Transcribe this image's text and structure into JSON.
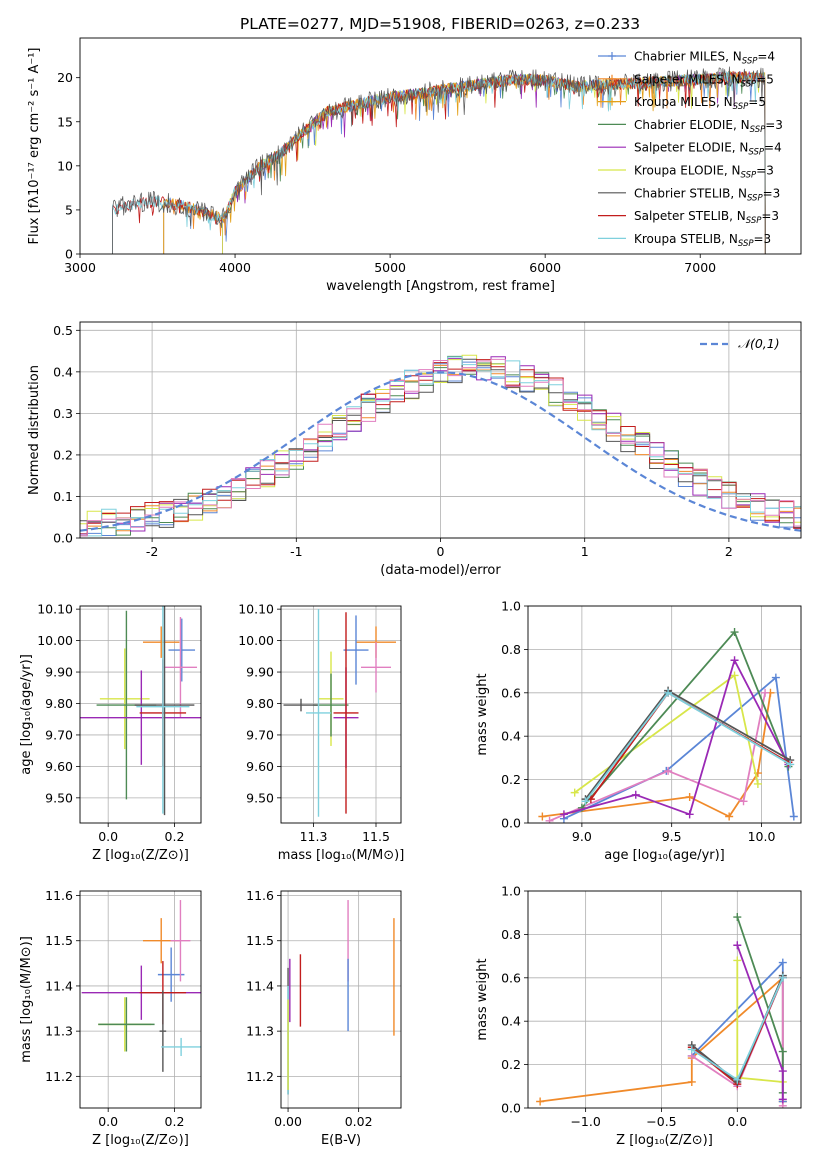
{
  "figure": {
    "title": "PLATE=0277, MJD=51908, FIBERID=0263, z=0.233",
    "palette": [
      "#5b86d6",
      "#f08a2a",
      "#e3a018",
      "#4d8a55",
      "#9a29b5",
      "#d8e64a",
      "#555555",
      "#c21d1d",
      "#7fd0dd",
      "#e17fc0"
    ]
  },
  "chart_data": [
    {
      "id": "spectrum",
      "type": "line",
      "xlabel": "wavelength [Angstrom, rest frame]",
      "ylabel": "Flux [fλ10⁻¹⁷ erg cm⁻² s⁻¹ A⁻¹]",
      "xlim": [
        3000,
        7650
      ],
      "ylim": [
        0,
        24.5
      ],
      "xticks": [
        3000,
        4000,
        5000,
        6000,
        7000
      ],
      "yticks": [
        0,
        5,
        10,
        15,
        20
      ],
      "grid": false,
      "legend_position": "top-right",
      "spectrum_range": [
        3210,
        7420
      ],
      "spectrum_knots": [
        [
          3210,
          5.0
        ],
        [
          3300,
          5.5
        ],
        [
          3500,
          6.0
        ],
        [
          3700,
          5.3
        ],
        [
          3930,
          4.0
        ],
        [
          4000,
          7.0
        ],
        [
          4150,
          9.8
        ],
        [
          4300,
          11.5
        ],
        [
          4450,
          14.0
        ],
        [
          4600,
          16.2
        ],
        [
          4800,
          17.0
        ],
        [
          5000,
          17.8
        ],
        [
          5200,
          18.2
        ],
        [
          5400,
          18.8
        ],
        [
          5600,
          19.3
        ],
        [
          5800,
          19.8
        ],
        [
          6000,
          19.7
        ],
        [
          6200,
          19.0
        ],
        [
          6400,
          19.2
        ],
        [
          6600,
          19.4
        ],
        [
          6800,
          19.6
        ],
        [
          7000,
          19.8
        ],
        [
          7200,
          20.1
        ],
        [
          7420,
          20.0
        ]
      ],
      "series": [
        {
          "name": "Chabrier MILES, N_SSP=4",
          "imf": "Chabrier",
          "lib": "MILES",
          "nssp": "4",
          "color": "#5b86d6",
          "start": 3540
        },
        {
          "name": "Salpeter MILES, N_SSP=5",
          "imf": "Salpeter",
          "lib": "MILES",
          "nssp": "5",
          "color": "#f08a2a",
          "start": 3540
        },
        {
          "name": "Kroupa MILES, N_SSP=5",
          "imf": "Kroupa",
          "lib": "MILES",
          "nssp": "5",
          "color": "#e3a018",
          "start": 3540
        },
        {
          "name": "Chabrier ELODIE, N_SSP=3",
          "imf": "Chabrier",
          "lib": "ELODIE",
          "nssp": "3",
          "color": "#4d8a55",
          "start": 3920
        },
        {
          "name": "Salpeter ELODIE, N_SSP=4",
          "imf": "Salpeter",
          "lib": "ELODIE",
          "nssp": "4",
          "color": "#9a29b5",
          "start": 3920
        },
        {
          "name": "Kroupa ELODIE, N_SSP=3",
          "imf": "Kroupa",
          "lib": "ELODIE",
          "nssp": "3",
          "color": "#d8e64a",
          "start": 3920
        },
        {
          "name": "Chabrier STELIB, N_SSP=3",
          "imf": "Chabrier",
          "lib": "STELIB",
          "nssp": "3",
          "color": "#555555",
          "start": 3210
        },
        {
          "name": "Salpeter STELIB, N_SSP=3",
          "imf": "Salpeter",
          "lib": "STELIB",
          "nssp": "3",
          "color": "#c21d1d",
          "start": 3210
        },
        {
          "name": "Kroupa STELIB, N_SSP=3",
          "imf": "Kroupa",
          "lib": "STELIB",
          "nssp": "3",
          "color": "#7fd0dd",
          "start": 3210
        }
      ]
    },
    {
      "id": "residuals",
      "type": "line",
      "xlabel": "(data-model)/error",
      "ylabel": "Normed distribution",
      "xlim": [
        -2.5,
        2.5
      ],
      "ylim": [
        0,
        0.52
      ],
      "xticks": [
        -2,
        -1,
        0,
        1,
        2
      ],
      "yticks": [
        0.0,
        0.1,
        0.2,
        0.3,
        0.4,
        0.5
      ],
      "grid": true,
      "legend_position": "top-right",
      "normal_label": "𝒩(0,1)",
      "normal_color": "#5b86d6",
      "bin_width": 0.1,
      "histogram_colors": [
        "#5b86d6",
        "#f08a2a",
        "#4d8a55",
        "#9a29b5",
        "#d8e64a",
        "#555555",
        "#c21d1d",
        "#7fd0dd",
        "#e17fc0"
      ]
    },
    {
      "id": "age_vs_z",
      "type": "scatter",
      "xlabel": "Z [log₁₀(Z/Z⊙)]",
      "ylabel": "age  [log₁₀(age/yr)]",
      "xlim": [
        -0.085,
        0.28
      ],
      "ylim": [
        9.42,
        10.11
      ],
      "xticks": [
        0.0,
        0.2
      ],
      "yticks": [
        9.5,
        9.6,
        9.7,
        9.8,
        9.9,
        10.0,
        10.1
      ],
      "grid": true,
      "points": [
        {
          "x": 0.16,
          "y": 9.995,
          "xerr": 0.055,
          "yerr": 0.05,
          "color": "#f08a2a"
        },
        {
          "x": 0.222,
          "y": 9.97,
          "xerr": 0.04,
          "yerr": 0.1,
          "color": "#5b86d6"
        },
        {
          "x": 0.218,
          "y": 9.915,
          "xerr": 0.05,
          "yerr": 0.16,
          "color": "#e17fc0"
        },
        {
          "x": 0.05,
          "y": 9.815,
          "xerr": 0.075,
          "yerr": 0.16,
          "color": "#d8e64a"
        },
        {
          "x": 0.055,
          "y": 9.795,
          "xerr": 0.09,
          "yerr": 0.3,
          "color": "#4d8a55"
        },
        {
          "x": 0.1,
          "y": 9.755,
          "xerr": 0.2,
          "yerr": 0.15,
          "color": "#9a29b5"
        },
        {
          "x": 0.165,
          "y": 9.77,
          "xerr": 0.07,
          "yerr": 0.17,
          "color": "#c21d1d"
        },
        {
          "x": 0.17,
          "y": 9.795,
          "xerr": 0.09,
          "yerr": 0.35,
          "color": "#555555"
        },
        {
          "x": 0.165,
          "y": 9.79,
          "xerr": 0.08,
          "yerr": 0.34,
          "color": "#7fd0dd"
        }
      ]
    },
    {
      "id": "age_vs_mass",
      "type": "scatter",
      "xlabel": "mass [log₁₀(M/M⊙)]",
      "ylabel": "",
      "xlim": [
        11.12,
        11.6
      ],
      "ylim": [
        9.42,
        10.11
      ],
      "xticks": [
        11.25,
        11.5
      ],
      "yticks": [
        9.5,
        9.6,
        9.7,
        9.8,
        9.9,
        10.0,
        10.1
      ],
      "grid": true,
      "points": [
        {
          "x": 11.5,
          "y": 9.995,
          "xerr": 0.08,
          "yerr": 0.05,
          "color": "#f08a2a"
        },
        {
          "x": 11.42,
          "y": 9.97,
          "xerr": 0.05,
          "yerr": 0.11,
          "color": "#5b86d6"
        },
        {
          "x": 11.5,
          "y": 9.915,
          "xerr": 0.06,
          "yerr": 0.08,
          "color": "#e17fc0"
        },
        {
          "x": 11.32,
          "y": 9.815,
          "xerr": 0.05,
          "yerr": 0.15,
          "color": "#d8e64a"
        },
        {
          "x": 11.32,
          "y": 9.795,
          "xerr": 0.07,
          "yerr": 0.1,
          "color": "#4d8a55"
        },
        {
          "x": 11.38,
          "y": 9.755,
          "xerr": 0.05,
          "yerr": 0.16,
          "color": "#9a29b5"
        },
        {
          "x": 11.38,
          "y": 9.77,
          "xerr": 0.05,
          "yerr": 0.32,
          "color": "#c21d1d"
        },
        {
          "x": 11.2,
          "y": 9.795,
          "xerr": 0.07,
          "yerr": 0.02,
          "color": "#555555"
        },
        {
          "x": 11.27,
          "y": 9.77,
          "xerr": 0.05,
          "yerr": 0.33,
          "color": "#7fd0dd"
        }
      ]
    },
    {
      "id": "weight_vs_age",
      "type": "line",
      "xlabel": "age  [log₁₀(age/yr)]",
      "ylabel": "mass weight",
      "xlim": [
        8.7,
        10.22
      ],
      "ylim": [
        0,
        1.0
      ],
      "xticks": [
        9.0,
        9.5,
        10.0
      ],
      "yticks": [
        0.0,
        0.2,
        0.4,
        0.6,
        0.8,
        1.0
      ],
      "grid": true,
      "series": [
        {
          "color": "#f08a2a",
          "points": [
            [
              8.78,
              0.03
            ],
            [
              9.6,
              0.12
            ],
            [
              9.82,
              0.03
            ],
            [
              9.98,
              0.23
            ],
            [
              10.05,
              0.6
            ]
          ]
        },
        {
          "color": "#5b86d6",
          "points": [
            [
              8.9,
              0.02
            ],
            [
              9.47,
              0.24
            ],
            [
              10.08,
              0.67
            ],
            [
              10.18,
              0.03
            ]
          ]
        },
        {
          "color": "#e17fc0",
          "points": [
            [
              8.82,
              0.01
            ],
            [
              9.48,
              0.24
            ],
            [
              9.9,
              0.1
            ],
            [
              10.02,
              0.6
            ]
          ]
        },
        {
          "color": "#d8e64a",
          "points": [
            [
              8.96,
              0.14
            ],
            [
              9.85,
              0.68
            ],
            [
              9.98,
              0.18
            ]
          ]
        },
        {
          "color": "#4d8a55",
          "points": [
            [
              9.0,
              0.07
            ],
            [
              9.85,
              0.88
            ],
            [
              10.15,
              0.26
            ]
          ]
        },
        {
          "color": "#9a29b5",
          "points": [
            [
              8.9,
              0.04
            ],
            [
              9.3,
              0.13
            ],
            [
              9.6,
              0.04
            ],
            [
              9.85,
              0.75
            ],
            [
              10.15,
              0.27
            ]
          ]
        },
        {
          "color": "#c21d1d",
          "points": [
            [
              9.05,
              0.11
            ],
            [
              9.48,
              0.6
            ],
            [
              10.15,
              0.28
            ]
          ]
        },
        {
          "color": "#555555",
          "points": [
            [
              9.02,
              0.11
            ],
            [
              9.48,
              0.61
            ],
            [
              10.16,
              0.29
            ]
          ]
        },
        {
          "color": "#7fd0dd",
          "points": [
            [
              9.02,
              0.1
            ],
            [
              9.48,
              0.6
            ],
            [
              10.16,
              0.27
            ]
          ]
        }
      ]
    },
    {
      "id": "mass_vs_z",
      "type": "scatter",
      "xlabel": "Z [log₁₀(Z/Z⊙)]",
      "ylabel": "mass [log₁₀(M/M⊙)]",
      "xlim": [
        -0.085,
        0.28
      ],
      "ylim": [
        11.13,
        11.61
      ],
      "xticks": [
        0.0,
        0.2
      ],
      "yticks": [
        11.2,
        11.3,
        11.4,
        11.5,
        11.6
      ],
      "grid": true,
      "points": [
        {
          "x": 0.16,
          "y": 11.5,
          "xerr": 0.055,
          "yerr": 0.05,
          "color": "#f08a2a"
        },
        {
          "x": 0.19,
          "y": 11.425,
          "xerr": 0.04,
          "yerr": 0.06,
          "color": "#5b86d6"
        },
        {
          "x": 0.218,
          "y": 11.5,
          "xerr": 0.03,
          "yerr": 0.09,
          "color": "#e17fc0"
        },
        {
          "x": 0.05,
          "y": 11.315,
          "xerr": 0.08,
          "yerr": 0.06,
          "color": "#d8e64a"
        },
        {
          "x": 0.055,
          "y": 11.315,
          "xerr": 0.085,
          "yerr": 0.06,
          "color": "#4d8a55"
        },
        {
          "x": 0.1,
          "y": 11.385,
          "xerr": 0.18,
          "yerr": 0.06,
          "color": "#9a29b5"
        },
        {
          "x": 0.165,
          "y": 11.385,
          "xerr": 0.07,
          "yerr": 0.07,
          "color": "#c21d1d"
        },
        {
          "x": 0.165,
          "y": 11.3,
          "xerr": 0.01,
          "yerr": 0.09,
          "color": "#555555"
        },
        {
          "x": 0.22,
          "y": 11.265,
          "xerr": 0.06,
          "yerr": 0.02,
          "color": "#7fd0dd"
        }
      ]
    },
    {
      "id": "mass_vs_ebv",
      "type": "scatter",
      "xlabel": "E(B-V)",
      "ylabel": "",
      "xlim": [
        -0.002,
        0.032
      ],
      "ylim": [
        11.13,
        11.61
      ],
      "xticks": [
        0.0,
        0.02
      ],
      "yticks": [
        11.2,
        11.3,
        11.4,
        11.5,
        11.6
      ],
      "grid": true,
      "points": [
        {
          "x": 0.03,
          "y": 11.42,
          "xerr": 0,
          "yerr": 0.13,
          "color": "#f08a2a"
        },
        {
          "x": 0.017,
          "y": 11.5,
          "xerr": 0,
          "yerr": 0.09,
          "color": "#e17fc0"
        },
        {
          "x": 0.017,
          "y": 11.38,
          "xerr": 0,
          "yerr": 0.08,
          "color": "#5b86d6"
        },
        {
          "x": 0.0035,
          "y": 11.39,
          "xerr": 0,
          "yerr": 0.08,
          "color": "#c21d1d"
        },
        {
          "x": 0.0005,
          "y": 11.39,
          "xerr": 0,
          "yerr": 0.07,
          "color": "#9a29b5"
        },
        {
          "x": 0.0,
          "y": 11.3,
          "xerr": 0,
          "yerr": 0.14,
          "color": "#555555"
        },
        {
          "x": 0.0,
          "y": 11.28,
          "xerr": 0,
          "yerr": 0.12,
          "color": "#7fd0dd"
        },
        {
          "x": 0.0,
          "y": 11.27,
          "xerr": 0,
          "yerr": 0.1,
          "color": "#d8e64a"
        }
      ]
    },
    {
      "id": "weight_vs_z",
      "type": "line",
      "xlabel": "Z [log₁₀(Z/Z⊙)]",
      "ylabel": "mass weight",
      "xlim": [
        -1.38,
        0.42
      ],
      "ylim": [
        0,
        1.0
      ],
      "xticks": [
        -1.0,
        -0.5,
        0.0
      ],
      "yticks": [
        0.0,
        0.2,
        0.4,
        0.6,
        0.8,
        1.0
      ],
      "grid": true,
      "series": [
        {
          "color": "#f08a2a",
          "points": [
            [
              -1.3,
              0.03
            ],
            [
              -0.3,
              0.12
            ],
            [
              -0.3,
              0.23
            ],
            [
              0.3,
              0.6
            ],
            [
              0.3,
              0.03
            ]
          ]
        },
        {
          "color": "#5b86d6",
          "points": [
            [
              -0.3,
              0.24
            ],
            [
              0.3,
              0.67
            ],
            [
              0.3,
              0.03
            ]
          ]
        },
        {
          "color": "#e17fc0",
          "points": [
            [
              -0.3,
              0.24
            ],
            [
              0.0,
              0.1
            ],
            [
              0.3,
              0.6
            ],
            [
              0.3,
              0.01
            ]
          ]
        },
        {
          "color": "#d8e64a",
          "points": [
            [
              0.0,
              0.68
            ],
            [
              0.0,
              0.14
            ],
            [
              0.3,
              0.12
            ]
          ]
        },
        {
          "color": "#4d8a55",
          "points": [
            [
              0.0,
              0.88
            ],
            [
              0.3,
              0.26
            ],
            [
              0.3,
              0.07
            ]
          ]
        },
        {
          "color": "#9a29b5",
          "points": [
            [
              0.0,
              0.75
            ],
            [
              0.3,
              0.17
            ],
            [
              0.3,
              0.04
            ]
          ]
        },
        {
          "color": "#c21d1d",
          "points": [
            [
              -0.3,
              0.28
            ],
            [
              0.0,
              0.11
            ],
            [
              0.3,
              0.6
            ]
          ]
        },
        {
          "color": "#555555",
          "points": [
            [
              -0.3,
              0.29
            ],
            [
              0.0,
              0.12
            ],
            [
              0.3,
              0.61
            ]
          ]
        },
        {
          "color": "#7fd0dd",
          "points": [
            [
              -0.3,
              0.27
            ],
            [
              0.0,
              0.13
            ],
            [
              0.3,
              0.6
            ]
          ]
        }
      ]
    }
  ]
}
